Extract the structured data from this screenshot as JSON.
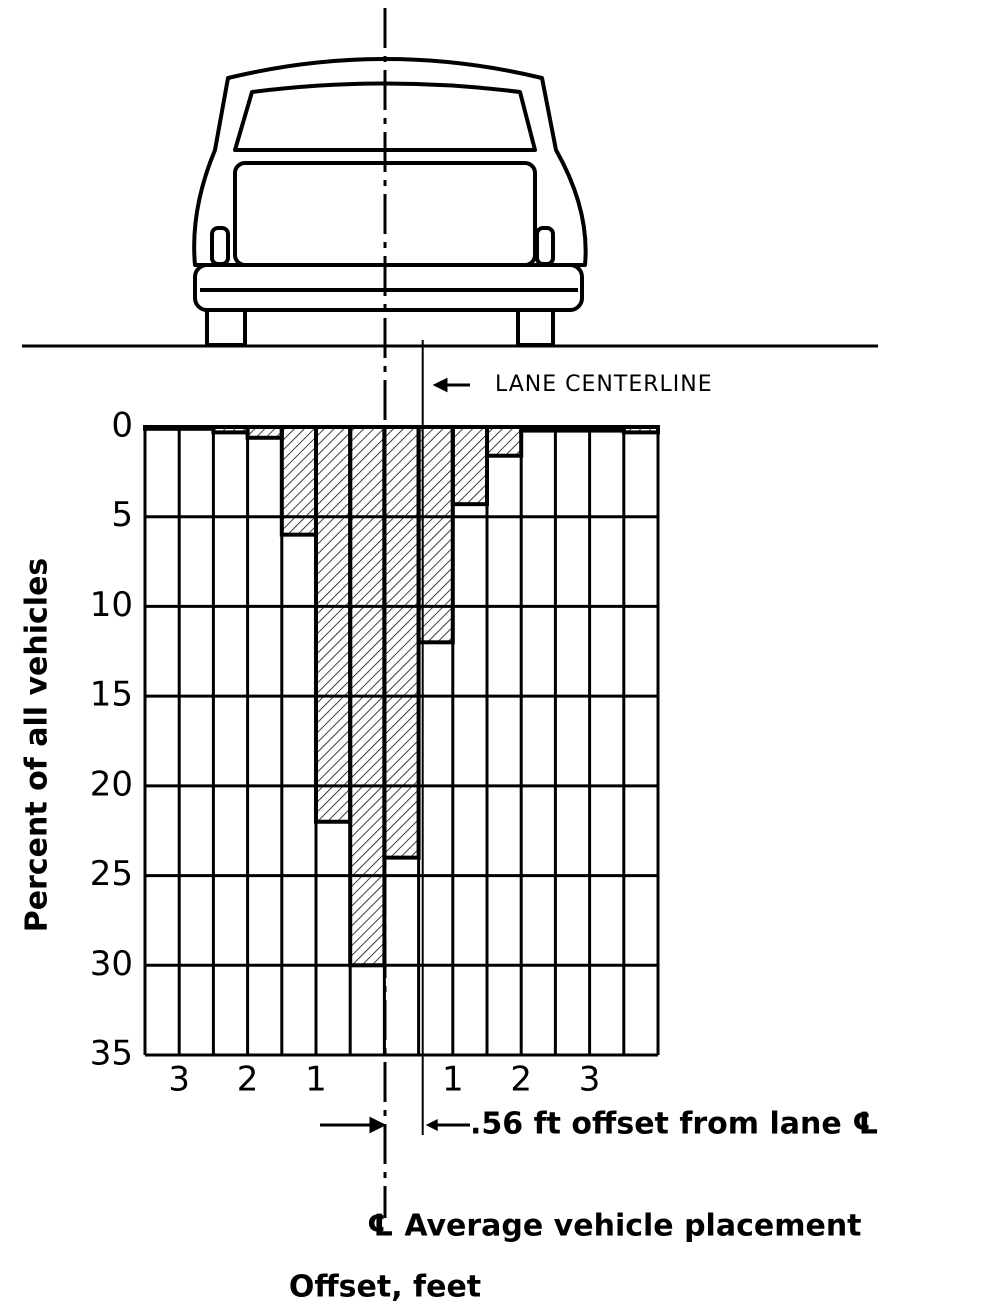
{
  "chart_data": {
    "type": "histogram",
    "ylabel": "Percent of all vehicles",
    "xlabel": "Offset, feet",
    "bins": [
      -3.5,
      -3,
      -2.5,
      -2,
      -1.5,
      -1,
      -0.5,
      0,
      0.5,
      1,
      1.5,
      2,
      2.5,
      3,
      3.5,
      4
    ],
    "values": [
      0.1,
      0.1,
      0.3,
      0.6,
      6,
      22,
      30,
      24,
      12,
      4.3,
      1.6,
      0.2,
      0.2,
      0.2,
      0.3
    ],
    "xlim": [
      -3.5,
      4
    ],
    "xticks": [
      {
        "value": -3,
        "label": "3"
      },
      {
        "value": -2,
        "label": "2"
      },
      {
        "value": -1,
        "label": "1"
      },
      {
        "value": 1,
        "label": "1"
      },
      {
        "value": 2,
        "label": "2"
      },
      {
        "value": 3,
        "label": "3"
      }
    ],
    "ylim": [
      0,
      35
    ],
    "y_inverted": true,
    "yticks": [
      0,
      5,
      10,
      15,
      20,
      25,
      30,
      35
    ],
    "grid": true,
    "color": "#000000",
    "lane_centerline": 0.56,
    "annotations": [
      "LANE CENTERLINE",
      ".56 ft  offset from lane ℄",
      "℄  Average vehicle placement"
    ]
  }
}
